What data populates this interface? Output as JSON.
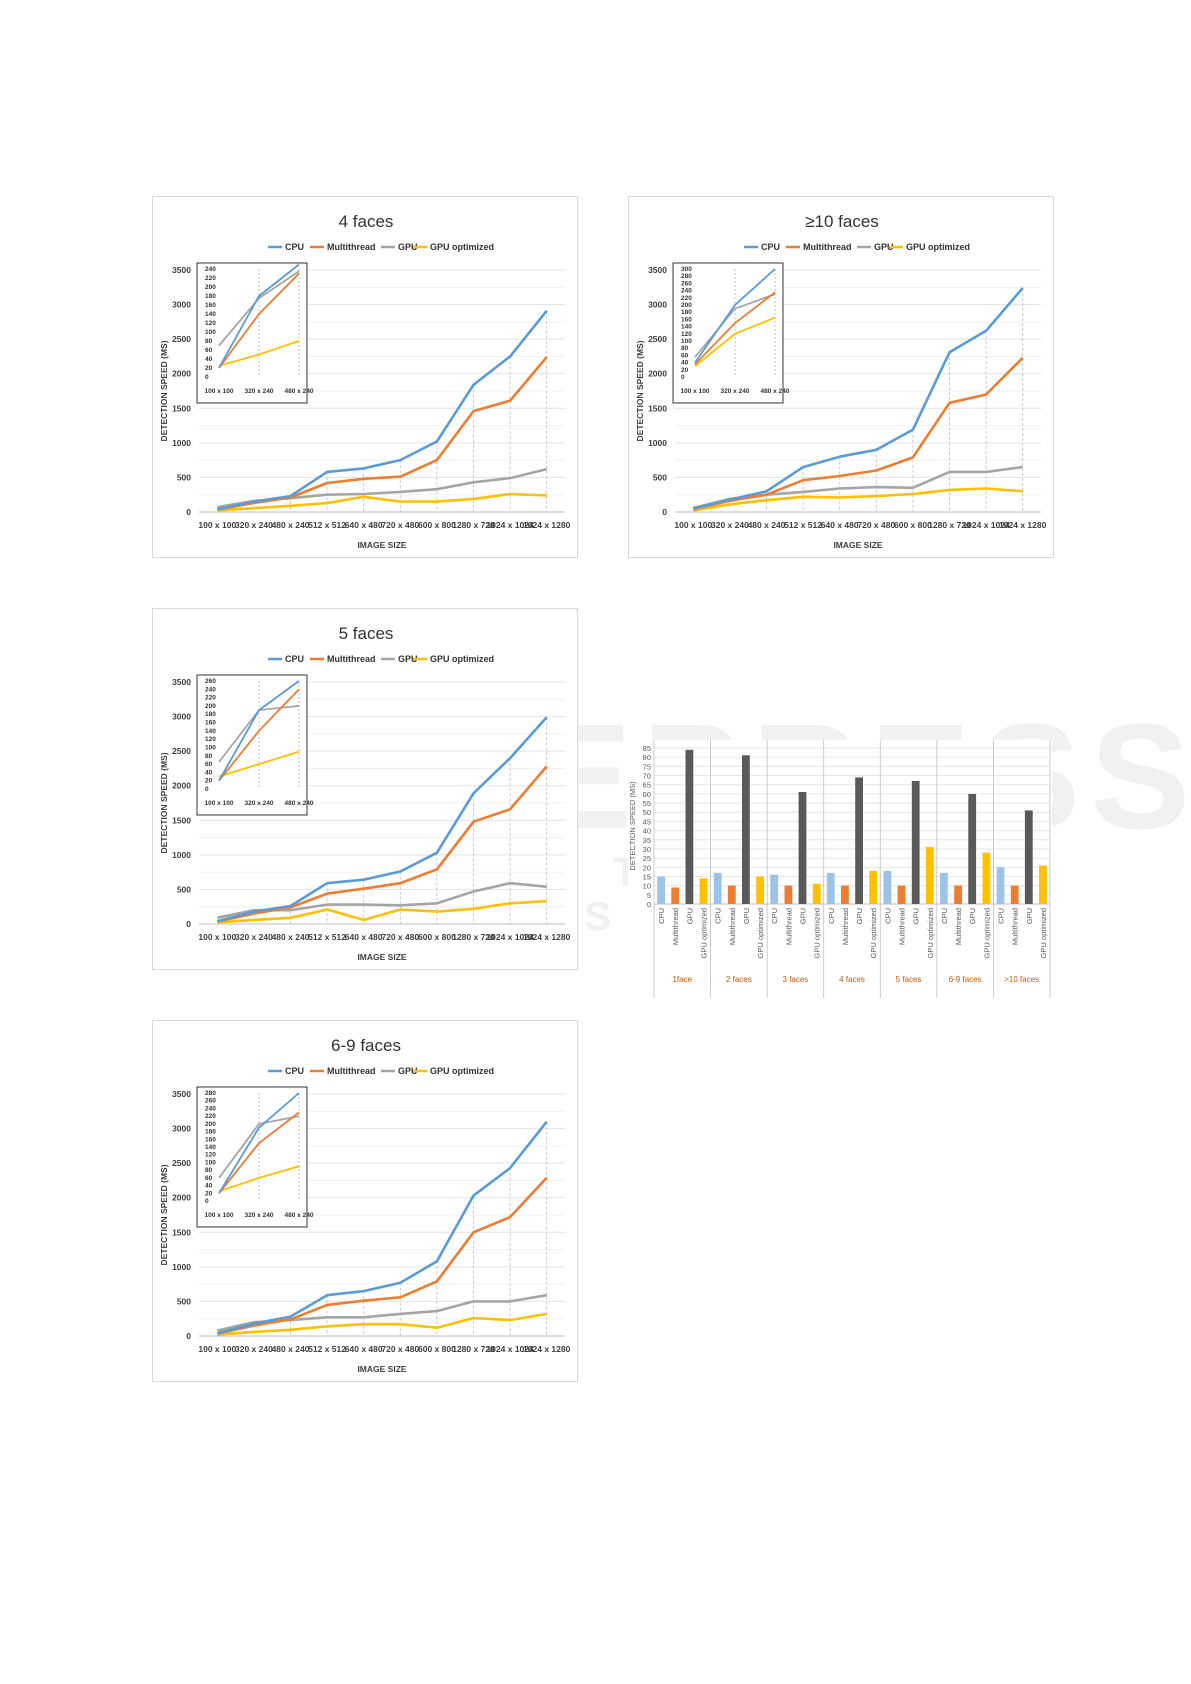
{
  "watermark": {
    "line1": "SCITEPRESS",
    "line2": "SCIENCE AND TECHNOLOGY PUBLICATIONS"
  },
  "chart_data": [
    {
      "type": "line",
      "title": "4 faces",
      "xlabel": "IMAGE SIZE",
      "ylabel": "DETECTION SPEED (MS)",
      "categories": [
        "100 x 100",
        "320 x 240",
        "480 x 240",
        "512 x 512",
        "640 x 480",
        "720 x 480",
        "600 x 800",
        "1280 x 720",
        "1024 x 1024",
        "1024 x 1280"
      ],
      "ylim": [
        0,
        3500
      ],
      "yticks": [
        0,
        500,
        1000,
        1500,
        2000,
        2500,
        3000,
        3500
      ],
      "series": [
        {
          "name": "CPU",
          "color": "#5b9bd5",
          "values": [
            40,
            150,
            230,
            580,
            630,
            750,
            1020,
            1840,
            2250,
            2910
          ]
        },
        {
          "name": "Multithread",
          "color": "#ed7d31",
          "values": [
            35,
            130,
            210,
            420,
            480,
            510,
            750,
            1460,
            1610,
            2240
          ]
        },
        {
          "name": "GPU",
          "color": "#a5a5a5",
          "values": [
            70,
            160,
            200,
            250,
            260,
            290,
            330,
            430,
            490,
            620
          ]
        },
        {
          "name": "GPU optimized",
          "color": "#ffc000",
          "values": [
            25,
            55,
            90,
            130,
            220,
            150,
            150,
            190,
            260,
            240
          ]
        }
      ],
      "inset": {
        "categories": [
          "100 x 100",
          "320 x 240",
          "480 x 240"
        ],
        "ylim": [
          0,
          240
        ],
        "yticks": [
          0,
          20,
          40,
          60,
          80,
          100,
          120,
          140,
          160,
          180,
          200,
          220,
          240
        ],
        "series": [
          {
            "name": "CPU",
            "values": [
              20,
              180,
              250
            ]
          },
          {
            "name": "Multithread",
            "values": [
              20,
              140,
              230
            ]
          },
          {
            "name": "GPU",
            "values": [
              70,
              175,
              235
            ]
          },
          {
            "name": "GPU optimized",
            "values": [
              25,
              50,
              80
            ]
          }
        ]
      }
    },
    {
      "type": "line",
      "title": "≥10 faces",
      "xlabel": "IMAGE SIZE",
      "ylabel": "DETECTION SPEED (MS)",
      "categories": [
        "100 x 100",
        "320 x 240",
        "480 x 240",
        "512 x 512",
        "640 x 480",
        "720 x 480",
        "600 x 800",
        "1280 x 720",
        "1024 x 1024",
        "1024 x 1280"
      ],
      "ylim": [
        0,
        3500
      ],
      "yticks": [
        0,
        500,
        1000,
        1500,
        2000,
        2500,
        3000,
        3500
      ],
      "series": [
        {
          "name": "CPU",
          "color": "#5b9bd5",
          "values": [
            50,
            180,
            300,
            650,
            800,
            900,
            1190,
            2310,
            2620,
            3240
          ]
        },
        {
          "name": "Multithread",
          "color": "#ed7d31",
          "values": [
            40,
            160,
            250,
            460,
            520,
            600,
            790,
            1580,
            1700,
            2230
          ]
        },
        {
          "name": "GPU",
          "color": "#a5a5a5",
          "values": [
            60,
            190,
            250,
            290,
            340,
            360,
            350,
            580,
            580,
            650
          ]
        },
        {
          "name": "GPU optimized",
          "color": "#ffc000",
          "values": [
            20,
            110,
            170,
            220,
            210,
            230,
            260,
            320,
            340,
            300
          ]
        }
      ],
      "inset": {
        "categories": [
          "100 x 100",
          "320 x 240",
          "480 x 240"
        ],
        "ylim": [
          0,
          300
        ],
        "yticks": [
          0,
          20,
          40,
          60,
          80,
          100,
          120,
          140,
          160,
          180,
          200,
          220,
          240,
          260,
          280,
          300
        ],
        "series": [
          {
            "name": "CPU",
            "values": [
              40,
              200,
              300
            ]
          },
          {
            "name": "Multithread",
            "values": [
              35,
              150,
              235
            ]
          },
          {
            "name": "GPU",
            "values": [
              55,
              190,
              230
            ]
          },
          {
            "name": "GPU optimized",
            "values": [
              30,
              120,
              165
            ]
          }
        ]
      }
    },
    {
      "type": "line",
      "title": "5 faces",
      "xlabel": "IMAGE SIZE",
      "ylabel": "DETECTION SPEED (MS)",
      "categories": [
        "100 x 100",
        "320 x 240",
        "480 x 240",
        "512 x 512",
        "640 x 480",
        "720 x 480",
        "600 x 800",
        "1280 x 720",
        "1024 x 1024",
        "1024 x 1280"
      ],
      "ylim": [
        0,
        3500
      ],
      "yticks": [
        0,
        500,
        1000,
        1500,
        2000,
        2500,
        3000,
        3500
      ],
      "series": [
        {
          "name": "CPU",
          "color": "#5b9bd5",
          "values": [
            40,
            180,
            260,
            590,
            640,
            760,
            1030,
            1890,
            2400,
            2990
          ]
        },
        {
          "name": "Multithread",
          "color": "#ed7d31",
          "values": [
            35,
            150,
            240,
            440,
            510,
            590,
            790,
            1480,
            1660,
            2280
          ]
        },
        {
          "name": "GPU",
          "color": "#a5a5a5",
          "values": [
            90,
            200,
            200,
            280,
            280,
            270,
            300,
            470,
            590,
            540
          ]
        },
        {
          "name": "GPU optimized",
          "color": "#ffc000",
          "values": [
            25,
            60,
            90,
            210,
            60,
            210,
            180,
            220,
            300,
            330
          ]
        }
      ],
      "inset": {
        "categories": [
          "100 x 100",
          "320 x 240",
          "480 x 240"
        ],
        "ylim": [
          0,
          260
        ],
        "yticks": [
          0,
          20,
          40,
          60,
          80,
          100,
          120,
          140,
          160,
          180,
          200,
          220,
          240,
          260
        ],
        "series": [
          {
            "name": "CPU",
            "values": [
              20,
              190,
              260
            ]
          },
          {
            "name": "Multithread",
            "values": [
              20,
              140,
              240
            ]
          },
          {
            "name": "GPU",
            "values": [
              65,
              190,
              200
            ]
          },
          {
            "name": "GPU optimized",
            "values": [
              30,
              60,
              90
            ]
          }
        ]
      }
    },
    {
      "type": "line",
      "title": "6-9 faces",
      "xlabel": "IMAGE SIZE",
      "ylabel": "DETECTION SPEED (MS)",
      "categories": [
        "100 x 100",
        "320 x 240",
        "480 x 240",
        "512 x 512",
        "640 x 480",
        "720 x 480",
        "600 x 800",
        "1280 x 720",
        "1024 x 1024",
        "1024 x 1280"
      ],
      "ylim": [
        0,
        3500
      ],
      "yticks": [
        0,
        500,
        1000,
        1500,
        2000,
        2500,
        3000,
        3500
      ],
      "series": [
        {
          "name": "CPU",
          "color": "#5b9bd5",
          "values": [
            40,
            180,
            280,
            590,
            650,
            770,
            1080,
            2030,
            2430,
            3100
          ]
        },
        {
          "name": "Multithread",
          "color": "#ed7d31",
          "values": [
            35,
            150,
            240,
            450,
            510,
            560,
            790,
            1500,
            1720,
            2290
          ]
        },
        {
          "name": "GPU",
          "color": "#a5a5a5",
          "values": [
            80,
            200,
            230,
            270,
            270,
            320,
            360,
            500,
            500,
            590
          ]
        },
        {
          "name": "GPU optimized",
          "color": "#ffc000",
          "values": [
            20,
            60,
            90,
            140,
            170,
            170,
            120,
            260,
            230,
            320
          ]
        }
      ],
      "inset": {
        "categories": [
          "100 x 100",
          "320 x 240",
          "480 x 240"
        ],
        "ylim": [
          0,
          280
        ],
        "yticks": [
          0,
          20,
          40,
          60,
          80,
          100,
          120,
          140,
          160,
          180,
          200,
          220,
          240,
          260,
          280
        ],
        "series": [
          {
            "name": "CPU",
            "values": [
              20,
              190,
              280
            ]
          },
          {
            "name": "Multithread",
            "values": [
              20,
              150,
              230
            ]
          },
          {
            "name": "GPU",
            "values": [
              60,
              200,
              220
            ]
          },
          {
            "name": "GPU optimized",
            "values": [
              25,
              60,
              90
            ]
          }
        ]
      }
    },
    {
      "type": "bar",
      "title": "",
      "xlabel": "",
      "ylabel": "DETECTION SPEED (MS)",
      "ylim": [
        0,
        85
      ],
      "yticks": [
        0,
        5,
        10,
        15,
        20,
        25,
        30,
        35,
        40,
        45,
        50,
        55,
        60,
        65,
        70,
        75,
        80,
        85
      ],
      "groups": [
        "1face",
        "2 faces",
        "3 faces",
        "4 faces",
        "5 faces",
        "6-9 faces",
        ">10 faces"
      ],
      "series_names": [
        "CPU",
        "Multithread",
        "GPU",
        "GPU optimized"
      ],
      "series_colors": [
        "#9dc3e6",
        "#ed7d31",
        "#595959",
        "#ffc000"
      ],
      "values": [
        [
          15,
          9,
          84,
          14
        ],
        [
          17,
          10,
          81,
          15
        ],
        [
          16,
          10,
          61,
          11
        ],
        [
          17,
          10,
          69,
          18
        ],
        [
          18,
          10,
          67,
          31
        ],
        [
          17,
          10,
          60,
          28
        ],
        [
          20,
          10,
          51,
          21
        ]
      ]
    }
  ]
}
